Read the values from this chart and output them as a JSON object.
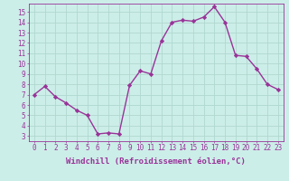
{
  "x": [
    0,
    1,
    2,
    3,
    4,
    5,
    6,
    7,
    8,
    9,
    10,
    11,
    12,
    13,
    14,
    15,
    16,
    17,
    18,
    19,
    20,
    21,
    22,
    23
  ],
  "y": [
    7.0,
    7.8,
    6.8,
    6.2,
    5.5,
    5.0,
    3.2,
    3.3,
    3.2,
    7.9,
    9.3,
    9.0,
    12.2,
    14.0,
    14.2,
    14.1,
    14.5,
    15.5,
    14.0,
    10.8,
    10.7,
    9.5,
    8.0,
    7.5
  ],
  "line_color": "#993399",
  "marker": "D",
  "marker_size": 2.2,
  "background_color": "#cceee8",
  "grid_color": "#b0d8d0",
  "xlabel": "Windchill (Refroidissement éolien,°C)",
  "xlim": [
    -0.5,
    23.5
  ],
  "ylim": [
    2.5,
    15.8
  ],
  "xticks": [
    0,
    1,
    2,
    3,
    4,
    5,
    6,
    7,
    8,
    9,
    10,
    11,
    12,
    13,
    14,
    15,
    16,
    17,
    18,
    19,
    20,
    21,
    22,
    23
  ],
  "yticks": [
    3,
    4,
    5,
    6,
    7,
    8,
    9,
    10,
    11,
    12,
    13,
    14,
    15
  ],
  "tick_fontsize": 5.5,
  "xlabel_fontsize": 6.5,
  "line_width": 1.0
}
